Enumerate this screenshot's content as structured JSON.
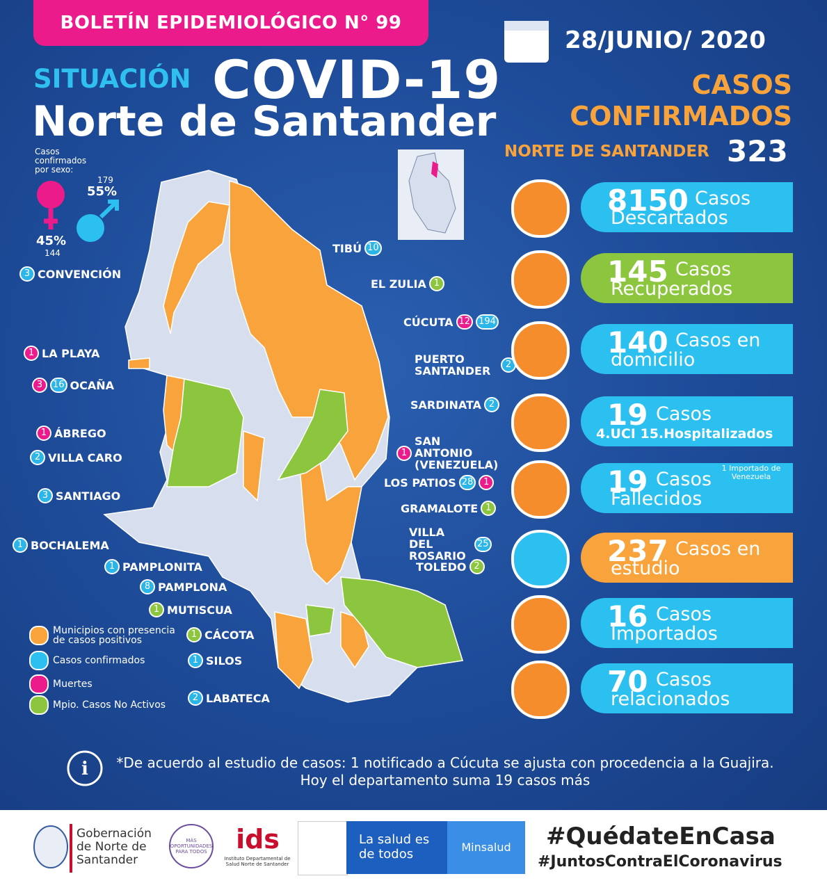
{
  "header": {
    "bulletin": "BOLETÍN EPIDEMIOLÓGICO N° 99",
    "date": "28/JUNIO/ 2020",
    "situation": "SITUACIÓN",
    "covid": "COVID-19",
    "region": "Norte de Santander"
  },
  "confirmed": {
    "heading_line1": "CASOS",
    "heading_line2": "CONFIRMADOS",
    "label": "NORTE DE SANTANDER",
    "total": "323"
  },
  "sex": {
    "label": "Casos confirmados por sexo:",
    "female_pct": "45%",
    "female_count": "144",
    "male_pct": "55%",
    "male_count": "179"
  },
  "municipalities": [
    {
      "name": "TIBÚ",
      "badges": [
        {
          "text": "10",
          "color": "#2bb5e8"
        }
      ]
    },
    {
      "name": "CONVENCIÓN",
      "badges": [
        {
          "text": "3",
          "color": "#2bb5e8"
        }
      ]
    },
    {
      "name": "EL ZULIA",
      "badges": [
        {
          "text": "1",
          "color": "#8cc63f"
        }
      ]
    },
    {
      "name": "CÚCUTA",
      "badges": [
        {
          "text": "12",
          "color": "#ec1b8c"
        },
        {
          "text": "194",
          "color": "#2bb5e8"
        }
      ]
    },
    {
      "name": "LA PLAYA",
      "badges": [
        {
          "text": "1",
          "color": "#ec1b8c"
        }
      ]
    },
    {
      "name": "PUERTO SANTANDER",
      "badges": [
        {
          "text": "2",
          "color": "#2bb5e8"
        }
      ]
    },
    {
      "name": "OCAÑA",
      "badges": [
        {
          "text": "3",
          "color": "#ec1b8c"
        },
        {
          "text": "16",
          "color": "#2bb5e8"
        }
      ]
    },
    {
      "name": "SARDINATA",
      "badges": [
        {
          "text": "2",
          "color": "#2bb5e8"
        }
      ]
    },
    {
      "name": "ÁBREGO",
      "badges": [
        {
          "text": "1",
          "color": "#ec1b8c"
        }
      ]
    },
    {
      "name": "SAN ANTONIO (VENEZUELA)",
      "badges": [
        {
          "text": "1",
          "color": "#ec1b8c"
        }
      ]
    },
    {
      "name": "VILLA CARO",
      "badges": [
        {
          "text": "2",
          "color": "#2bb5e8"
        }
      ]
    },
    {
      "name": "LOS PATIOS",
      "badges": [
        {
          "text": "28",
          "color": "#2bb5e8"
        },
        {
          "text": "1",
          "color": "#ec1b8c"
        }
      ]
    },
    {
      "name": "SANTIAGO",
      "badges": [
        {
          "text": "3",
          "color": "#2bb5e8"
        }
      ]
    },
    {
      "name": "GRAMALOTE",
      "badges": [
        {
          "text": "1",
          "color": "#8cc63f"
        }
      ]
    },
    {
      "name": "VILLA DEL ROSARIO",
      "badges": [
        {
          "text": "25",
          "color": "#2bb5e8"
        }
      ]
    },
    {
      "name": "BOCHALEMA",
      "badges": [
        {
          "text": "1",
          "color": "#2bb5e8"
        }
      ]
    },
    {
      "name": "PAMPLONITA",
      "badges": [
        {
          "text": "1",
          "color": "#2bb5e8"
        }
      ]
    },
    {
      "name": "TOLEDO",
      "badges": [
        {
          "text": "2",
          "color": "#8cc63f"
        }
      ]
    },
    {
      "name": "PAMPLONA",
      "badges": [
        {
          "text": "8",
          "color": "#2bb5e8"
        }
      ]
    },
    {
      "name": "MUTISCUA",
      "badges": [
        {
          "text": "1",
          "color": "#8cc63f"
        }
      ]
    },
    {
      "name": "CÁCOTA",
      "badges": [
        {
          "text": "1",
          "color": "#8cc63f"
        }
      ]
    },
    {
      "name": "SILOS",
      "badges": [
        {
          "text": "1",
          "color": "#2bb5e8"
        }
      ]
    },
    {
      "name": "LABATECA",
      "badges": [
        {
          "text": "2",
          "color": "#2bb5e8"
        }
      ]
    }
  ],
  "legend": [
    {
      "text": "Municipios con presencia de casos positivos",
      "color": "#f8a33b"
    },
    {
      "text": "Casos confirmados",
      "color": "#2bc0f0"
    },
    {
      "text": "Muertes",
      "color": "#ec1b8c"
    },
    {
      "text": "Mpio. Casos No Activos",
      "color": "#8cc63f"
    }
  ],
  "stats": [
    {
      "number": "8150",
      "label": "Casos Descartados",
      "color": "#2bc0f0"
    },
    {
      "number": "145",
      "label": "Casos Recuperados",
      "color": "#8cc63f"
    },
    {
      "number": "140",
      "label": "Casos en domicilio",
      "color": "#2bc0f0"
    },
    {
      "number": "19",
      "label": "Casos",
      "sub": "4.UCI 15.Hospitalizados",
      "color": "#2bc0f0"
    },
    {
      "number": "19",
      "label": "Casos Fallecidos",
      "note": "1 Importado de Venezuela",
      "color": "#2bc0f0"
    },
    {
      "number": "237",
      "label": "Casos en estudio",
      "color": "#f8a33b"
    },
    {
      "number": "16",
      "label": "Casos Importados",
      "color": "#2bc0f0"
    },
    {
      "number": "70",
      "label": "Casos relacionados",
      "color": "#2bc0f0"
    }
  ],
  "footnote": "*De acuerdo al estudio de casos: 1 notificado a Cúcuta se ajusta con procedencia a la Guajira. Hoy el departamento suma 19 casos más",
  "footer": {
    "gobernacion": "Gobernación de Norte de Santander",
    "oportunidades": "MÁS OPORTUNIDADES PARA TODOS",
    "ids": "Instituto Departamental de Salud Norte de Santander",
    "salud": "La salud es de todos",
    "minsalud": "Minsalud",
    "hashtag1": "#QuédateEnCasa",
    "hashtag2": "#JuntosContraElCoronavirus"
  }
}
